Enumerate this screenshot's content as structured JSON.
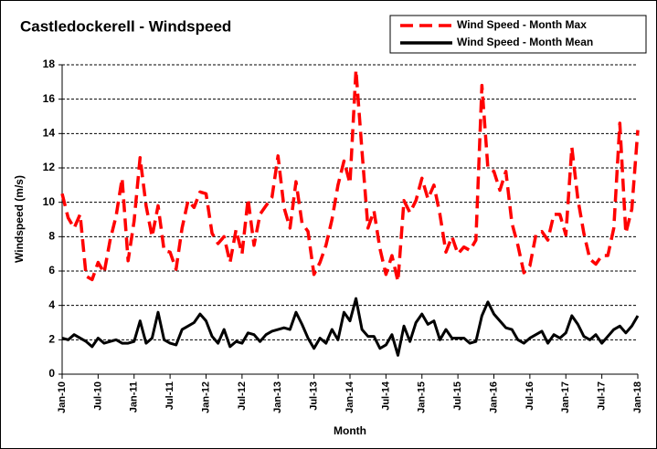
{
  "chart_data": {
    "type": "line",
    "title": "Castledockerell - Windspeed",
    "x_label": "Month",
    "y_label": "Windspeed (m/s)",
    "categories": [
      "Jan-10",
      null,
      null,
      null,
      null,
      null,
      "Jul-10",
      null,
      null,
      null,
      null,
      null,
      "Jan-11",
      null,
      null,
      null,
      null,
      null,
      "Jul-11",
      null,
      null,
      null,
      null,
      null,
      "Jan-12",
      null,
      null,
      null,
      null,
      null,
      "Jul-12",
      null,
      null,
      null,
      null,
      null,
      "Jan-13",
      null,
      null,
      null,
      null,
      null,
      "Jul-13",
      null,
      null,
      null,
      null,
      null,
      "Jan-14",
      null,
      null,
      null,
      null,
      null,
      "Jul-14",
      null,
      null,
      null,
      null,
      null,
      "Jan-15",
      null,
      null,
      null,
      null,
      null,
      "Jul-15",
      null,
      null,
      null,
      null,
      null,
      "Jan-16",
      null,
      null,
      null,
      null,
      null,
      "Jul-16",
      null,
      null,
      null,
      null,
      null,
      "Jan-17",
      null,
      null,
      null,
      null,
      null,
      "Jul-17",
      null,
      null,
      null,
      null,
      null,
      "Jan-18"
    ],
    "series": [
      {
        "name": "Wind Speed - Month Max",
        "color": "#ff0000",
        "line_style": "dashed",
        "values": [
          10.5,
          9.1,
          8.5,
          9.3,
          5.7,
          5.5,
          6.5,
          5.9,
          7.8,
          9.2,
          11.4,
          6.6,
          8.9,
          12.6,
          9.8,
          8.0,
          9.8,
          7.2,
          7.1,
          6.1,
          8.5,
          10.1,
          9.7,
          10.6,
          10.5,
          8.2,
          7.6,
          8.0,
          6.5,
          8.4,
          7.0,
          10.2,
          7.5,
          9.3,
          9.8,
          10.3,
          12.7,
          9.7,
          8.5,
          11.2,
          8.8,
          8.3,
          5.8,
          6.5,
          7.5,
          9.0,
          11.0,
          12.4,
          11.1,
          17.7,
          13.0,
          8.5,
          9.5,
          7.3,
          5.8,
          6.9,
          5.4,
          10.1,
          9.4,
          10.1,
          11.4,
          10.2,
          11.0,
          9.3,
          7.1,
          8.0,
          7.0,
          7.4,
          7.2,
          7.8,
          16.8,
          12.0,
          11.8,
          10.7,
          11.8,
          8.8,
          7.5,
          5.9,
          6.3,
          8.1,
          8.3,
          7.8,
          9.3,
          9.3,
          8.1,
          13.2,
          10.2,
          8.2,
          6.7,
          6.4,
          6.9,
          6.9,
          8.5,
          14.6,
          8.2,
          9.6,
          14.2
        ]
      },
      {
        "name": "Wind Speed - Month Mean",
        "color": "#000000",
        "line_style": "solid",
        "values": [
          2.1,
          2.0,
          2.3,
          2.1,
          1.9,
          1.6,
          2.1,
          1.8,
          1.9,
          2.0,
          1.8,
          1.8,
          1.9,
          3.1,
          1.8,
          2.1,
          3.6,
          2.0,
          1.8,
          1.7,
          2.6,
          2.8,
          3.0,
          3.5,
          3.1,
          2.2,
          1.8,
          2.6,
          1.6,
          1.9,
          1.8,
          2.4,
          2.3,
          1.9,
          2.3,
          2.5,
          2.6,
          2.7,
          2.6,
          3.6,
          2.9,
          2.1,
          1.5,
          2.1,
          1.8,
          2.6,
          2.0,
          3.6,
          3.1,
          4.4,
          2.6,
          2.2,
          2.2,
          1.5,
          1.7,
          2.3,
          1.1,
          2.8,
          1.9,
          3.0,
          3.5,
          2.9,
          3.1,
          2.0,
          2.6,
          2.1,
          2.1,
          2.1,
          1.8,
          1.9,
          3.4,
          4.2,
          3.5,
          3.1,
          2.7,
          2.6,
          2.0,
          1.8,
          2.1,
          2.3,
          2.5,
          1.8,
          2.3,
          2.1,
          2.4,
          3.4,
          2.9,
          2.2,
          2.0,
          2.3,
          1.8,
          2.2,
          2.6,
          2.8,
          2.4,
          2.8,
          3.4
        ]
      }
    ],
    "ylim": [
      0,
      18
    ],
    "yticks": [
      0,
      2,
      4,
      6,
      8,
      10,
      12,
      14,
      16,
      18
    ],
    "grid": true,
    "legend": "top-right"
  }
}
